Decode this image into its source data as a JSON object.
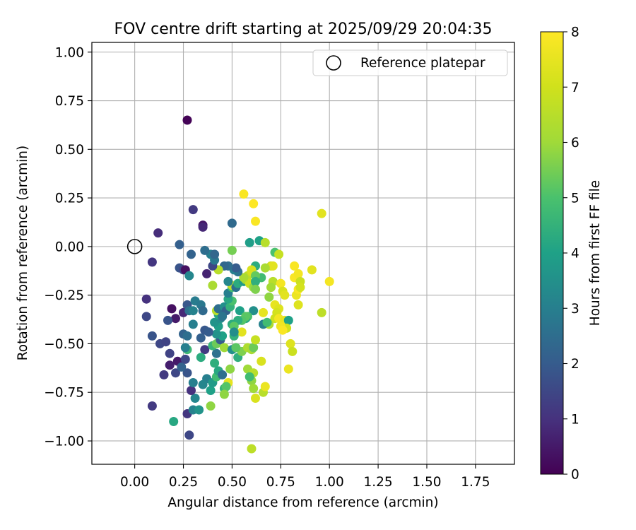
{
  "chart_data": {
    "type": "scatter",
    "title": "FOV centre drift starting at 2025/09/29 20:04:35",
    "xlabel": "Angular distance from reference (arcmin)",
    "ylabel": "Rotation from reference (arcmin)",
    "xlim": [
      -0.22,
      1.95
    ],
    "ylim": [
      -1.12,
      1.05
    ],
    "xticks": [
      0.0,
      0.25,
      0.5,
      0.75,
      1.0,
      1.25,
      1.5,
      1.75
    ],
    "xtick_labels": [
      "0.00",
      "0.25",
      "0.50",
      "0.75",
      "1.00",
      "1.25",
      "1.50",
      "1.75"
    ],
    "yticks": [
      1.0,
      0.75,
      0.5,
      0.25,
      0.0,
      -0.25,
      -0.5,
      -0.75,
      -1.0
    ],
    "ytick_labels": [
      "1.00",
      "0.75",
      "0.50",
      "0.25",
      "0.00",
      "−0.25",
      "−0.50",
      "−0.75",
      "−1.00"
    ],
    "grid": true,
    "colormap": "viridis",
    "colorbar": {
      "label": "Hours from first FF file",
      "min": 0,
      "max": 8,
      "ticks": [
        0,
        1,
        2,
        3,
        4,
        5,
        6,
        7,
        8
      ],
      "tick_labels": [
        "0",
        "1",
        "2",
        "3",
        "4",
        "5",
        "6",
        "7",
        "8"
      ]
    },
    "legend": {
      "placement": "top-right",
      "entries": [
        {
          "label": "Reference platepar",
          "marker": "open-circle"
        }
      ]
    },
    "reference_point": {
      "x": 0.0,
      "y": 0.0
    },
    "points": [
      [
        0.27,
        0.65,
        0.05
      ],
      [
        0.12,
        0.07,
        0.9
      ],
      [
        0.09,
        -0.08,
        1.1
      ],
      [
        0.06,
        -0.27,
        1.0
      ],
      [
        0.06,
        -0.36,
        1.5
      ],
      [
        0.19,
        -0.32,
        0.3
      ],
      [
        0.21,
        -0.37,
        0.5
      ],
      [
        0.17,
        -0.38,
        1.8
      ],
      [
        0.09,
        -0.46,
        1.8
      ],
      [
        0.13,
        -0.5,
        1.5
      ],
      [
        0.16,
        -0.49,
        1.4
      ],
      [
        0.18,
        -0.55,
        1.4
      ],
      [
        0.18,
        -0.61,
        0.6
      ],
      [
        0.22,
        -0.59,
        0.5
      ],
      [
        0.15,
        -0.66,
        1.2
      ],
      [
        0.21,
        -0.65,
        1.5
      ],
      [
        0.09,
        -0.82,
        1.2
      ],
      [
        0.2,
        -0.9,
        4.2
      ],
      [
        0.28,
        -0.97,
        1.5
      ],
      [
        0.27,
        -0.86,
        1.1
      ],
      [
        0.3,
        -0.84,
        3.1
      ],
      [
        0.33,
        -0.84,
        3.6
      ],
      [
        0.31,
        -0.78,
        3.2
      ],
      [
        0.29,
        -0.74,
        1.0
      ],
      [
        0.3,
        -0.7,
        3.0
      ],
      [
        0.27,
        -0.65,
        1.8
      ],
      [
        0.24,
        -0.62,
        2.2
      ],
      [
        0.26,
        -0.58,
        1.5
      ],
      [
        0.27,
        -0.53,
        4.7
      ],
      [
        0.26,
        -0.52,
        3.0
      ],
      [
        0.25,
        -0.45,
        2.2
      ],
      [
        0.27,
        -0.46,
        2.5
      ],
      [
        0.3,
        -0.4,
        3.0
      ],
      [
        0.25,
        -0.34,
        0.8
      ],
      [
        0.27,
        -0.3,
        1.9
      ],
      [
        0.28,
        -0.33,
        2.6
      ],
      [
        0.3,
        -0.33,
        3.1
      ],
      [
        0.31,
        -0.28,
        2.9
      ],
      [
        0.34,
        -0.3,
        2.8
      ],
      [
        0.35,
        -0.33,
        2.4
      ],
      [
        0.36,
        -0.43,
        1.9
      ],
      [
        0.34,
        -0.47,
        2.1
      ],
      [
        0.36,
        -0.53,
        1.2
      ],
      [
        0.34,
        -0.57,
        4.3
      ],
      [
        0.37,
        -0.68,
        3.0
      ],
      [
        0.35,
        -0.71,
        3.2
      ],
      [
        0.39,
        -0.74,
        4.0
      ],
      [
        0.39,
        -0.82,
        5.8
      ],
      [
        0.4,
        -0.7,
        3.8
      ],
      [
        0.42,
        -0.67,
        4.8
      ],
      [
        0.41,
        -0.6,
        4.4
      ],
      [
        0.43,
        -0.64,
        4.2
      ],
      [
        0.45,
        -0.66,
        2.5
      ],
      [
        0.42,
        -0.55,
        2.6
      ],
      [
        0.4,
        -0.51,
        4.6
      ],
      [
        0.42,
        -0.5,
        5.4
      ],
      [
        0.44,
        -0.48,
        2.0
      ],
      [
        0.45,
        -0.46,
        4.0
      ],
      [
        0.42,
        -0.45,
        3.6
      ],
      [
        0.43,
        -0.41,
        3.9
      ],
      [
        0.41,
        -0.39,
        3.6
      ],
      [
        0.38,
        -0.44,
        2.0
      ],
      [
        0.44,
        -0.37,
        3.4
      ],
      [
        0.43,
        -0.35,
        4.2
      ],
      [
        0.42,
        -0.33,
        6.5
      ],
      [
        0.43,
        -0.32,
        2.5
      ],
      [
        0.46,
        -0.31,
        3.5
      ],
      [
        0.47,
        -0.33,
        2.2
      ],
      [
        0.45,
        -0.36,
        2.7
      ],
      [
        0.49,
        -0.31,
        4.5
      ],
      [
        0.5,
        -0.28,
        5.0
      ],
      [
        0.48,
        -0.27,
        4.2
      ],
      [
        0.48,
        -0.24,
        3.0
      ],
      [
        0.5,
        -0.21,
        4.8
      ],
      [
        0.5,
        -0.2,
        6.8
      ],
      [
        0.48,
        -0.18,
        3.2
      ],
      [
        0.52,
        -0.21,
        2.6
      ],
      [
        0.53,
        -0.19,
        4.3
      ],
      [
        0.56,
        -0.18,
        3.8
      ],
      [
        0.57,
        -0.17,
        6.0
      ],
      [
        0.58,
        -0.15,
        6.6
      ],
      [
        0.59,
        -0.19,
        6.9
      ],
      [
        0.61,
        -0.21,
        5.9
      ],
      [
        0.6,
        -0.13,
        7.1
      ],
      [
        0.62,
        -0.1,
        4.3
      ],
      [
        0.6,
        -0.12,
        7.2
      ],
      [
        0.56,
        -0.16,
        6.2
      ],
      [
        0.53,
        -0.13,
        2.6
      ],
      [
        0.51,
        -0.12,
        3.0
      ],
      [
        0.52,
        -0.11,
        2.0
      ],
      [
        0.48,
        -0.1,
        2.5
      ],
      [
        0.46,
        -0.1,
        2.3
      ],
      [
        0.43,
        -0.12,
        6.5
      ],
      [
        0.4,
        -0.1,
        1.5
      ],
      [
        0.41,
        -0.07,
        2.8
      ],
      [
        0.39,
        -0.04,
        3.0
      ],
      [
        0.41,
        -0.04,
        2.3
      ],
      [
        0.36,
        -0.02,
        2.5
      ],
      [
        0.29,
        -0.04,
        2.2
      ],
      [
        0.23,
        0.01,
        2.1
      ],
      [
        0.23,
        -0.11,
        1.8
      ],
      [
        0.25,
        -0.12,
        1.5
      ],
      [
        0.26,
        -0.12,
        0.3
      ],
      [
        0.28,
        -0.15,
        3.2
      ],
      [
        0.37,
        -0.14,
        0.7
      ],
      [
        0.4,
        -0.2,
        6.2
      ],
      [
        0.35,
        0.11,
        0.4
      ],
      [
        0.35,
        0.1,
        0.8
      ],
      [
        0.3,
        0.19,
        1.2
      ],
      [
        0.5,
        0.12,
        2.4
      ],
      [
        0.5,
        -0.02,
        5.5
      ],
      [
        0.59,
        0.02,
        3.9
      ],
      [
        0.64,
        0.03,
        4.0
      ],
      [
        0.67,
        0.02,
        6.5
      ],
      [
        0.72,
        -0.03,
        5.0
      ],
      [
        0.74,
        -0.04,
        6.8
      ],
      [
        0.7,
        -0.1,
        7.0
      ],
      [
        0.71,
        -0.1,
        7.4
      ],
      [
        0.67,
        -0.11,
        6.2
      ],
      [
        0.65,
        -0.16,
        4.8
      ],
      [
        0.62,
        -0.15,
        5.3
      ],
      [
        0.62,
        -0.18,
        4.4
      ],
      [
        0.62,
        -0.22,
        5.6
      ],
      [
        0.69,
        -0.26,
        5.8
      ],
      [
        0.71,
        -0.18,
        6.5
      ],
      [
        0.7,
        -0.21,
        6.1
      ],
      [
        0.72,
        -0.3,
        7.5
      ],
      [
        0.74,
        -0.32,
        7.3
      ],
      [
        0.73,
        -0.34,
        7.1
      ],
      [
        0.72,
        -0.37,
        7.0
      ],
      [
        0.74,
        -0.37,
        7.8
      ],
      [
        0.77,
        -0.38,
        7.5
      ],
      [
        0.79,
        -0.38,
        4.0
      ],
      [
        0.78,
        -0.42,
        7.0
      ],
      [
        0.75,
        -0.41,
        7.7
      ],
      [
        0.76,
        -0.43,
        7.9
      ],
      [
        0.69,
        -0.4,
        6.3
      ],
      [
        0.66,
        -0.4,
        3.1
      ],
      [
        0.68,
        -0.39,
        4.8
      ],
      [
        0.66,
        -0.34,
        7.5
      ],
      [
        0.61,
        -0.33,
        3.5
      ],
      [
        0.58,
        -0.36,
        5.0
      ],
      [
        0.57,
        -0.37,
        4.2
      ],
      [
        0.54,
        -0.33,
        4.0
      ],
      [
        0.57,
        -0.36,
        5.2
      ],
      [
        0.55,
        -0.38,
        5.1
      ],
      [
        0.53,
        -0.38,
        4.4
      ],
      [
        0.5,
        -0.4,
        4.3
      ],
      [
        0.51,
        -0.41,
        5.2
      ],
      [
        0.55,
        -0.44,
        7.4
      ],
      [
        0.51,
        -0.46,
        4.5
      ],
      [
        0.51,
        -0.44,
        3.4
      ],
      [
        0.46,
        -0.52,
        6.0
      ],
      [
        0.5,
        -0.53,
        3.5
      ],
      [
        0.53,
        -0.57,
        4.4
      ],
      [
        0.55,
        -0.54,
        5.6
      ],
      [
        0.52,
        -0.52,
        5.2
      ],
      [
        0.58,
        -0.52,
        6.3
      ],
      [
        0.6,
        -0.53,
        6.2
      ],
      [
        0.61,
        -0.52,
        5.4
      ],
      [
        0.62,
        -0.48,
        6.8
      ],
      [
        0.58,
        -0.63,
        6.0
      ],
      [
        0.61,
        -0.65,
        6.5
      ],
      [
        0.6,
        -0.69,
        5.8
      ],
      [
        0.59,
        -0.67,
        4.8
      ],
      [
        0.65,
        -0.59,
        7.2
      ],
      [
        0.49,
        -0.63,
        5.8
      ],
      [
        0.48,
        -0.7,
        7.5
      ],
      [
        0.46,
        -0.73,
        4.6
      ],
      [
        0.47,
        -0.72,
        5.1
      ],
      [
        0.46,
        -0.76,
        5.8
      ],
      [
        0.61,
        -0.73,
        6.0
      ],
      [
        0.62,
        -0.78,
        7.2
      ],
      [
        0.66,
        -0.75,
        6.5
      ],
      [
        0.67,
        -0.72,
        7.6
      ],
      [
        0.6,
        -1.04,
        6.6
      ],
      [
        0.8,
        -0.5,
        7.3
      ],
      [
        0.81,
        -0.54,
        6.9
      ],
      [
        0.79,
        -0.63,
        7.6
      ],
      [
        0.75,
        -0.19,
        7.8
      ],
      [
        0.76,
        -0.23,
        7.2
      ],
      [
        0.77,
        -0.25,
        7.4
      ],
      [
        0.82,
        -0.16,
        7.9
      ],
      [
        0.82,
        -0.1,
        7.9
      ],
      [
        0.83,
        -0.25,
        7.6
      ],
      [
        0.84,
        -0.22,
        7.9
      ],
      [
        0.84,
        -0.14,
        7.8
      ],
      [
        0.85,
        -0.18,
        6.9
      ],
      [
        0.85,
        -0.21,
        7.1
      ],
      [
        0.84,
        -0.3,
        7.3
      ],
      [
        0.91,
        -0.12,
        7.4
      ],
      [
        0.96,
        0.17,
        7.4
      ],
      [
        1.0,
        -0.18,
        7.8
      ],
      [
        0.96,
        -0.34,
        6.6
      ],
      [
        0.56,
        0.27,
        7.9
      ],
      [
        0.61,
        0.22,
        8.0
      ],
      [
        0.62,
        0.13,
        7.9
      ]
    ]
  }
}
